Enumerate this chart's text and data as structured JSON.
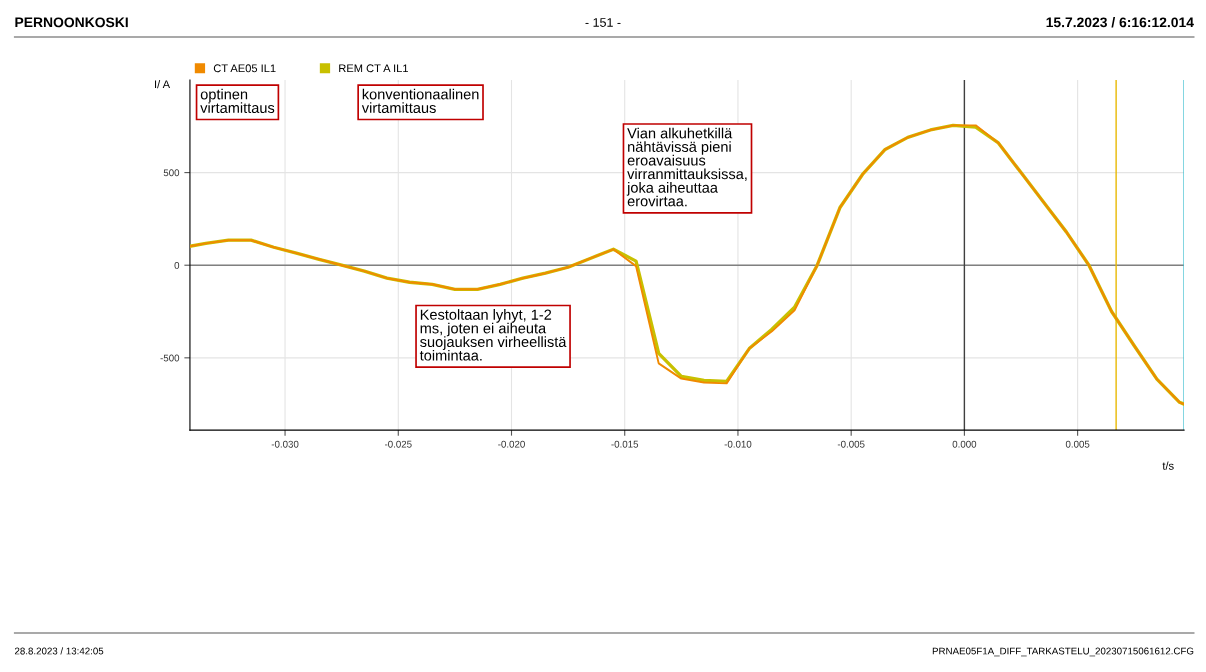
{
  "chart_data": {
    "type": "line",
    "title": "PERNOONKOSKI",
    "xlabel": "t/s",
    "ylabel": "I/ A",
    "annotations": [
      "- 151 -",
      "15.7.2023 / 6:16:12.014",
      "28.8.2023 / 13:42:05",
      "PRNAE05F1A_DIFF_TARKASTELU_20230715061612.CFG",
      "optinen\nvirtamittaus",
      "konventionaalinen\nvirtamittaus",
      "Vian alkuhetkillä\nnähtävissä pieni\neroavaisuus\nvirranmittauksissa,\njoka aiheuttaa\nerovirtaa.",
      "Kestoltaan lyhyt, 1-2\nms, joten ei aiheuta\nsuojauksen virheellistä\ntoimintaa."
    ],
    "x": [
      -0.0342,
      -0.0335,
      -0.0325,
      -0.0315,
      -0.0305,
      -0.0295,
      -0.0285,
      -0.0275,
      -0.0265,
      -0.0255,
      -0.0245,
      -0.0235,
      -0.0225,
      -0.0215,
      -0.0205,
      -0.0195,
      -0.0185,
      -0.0175,
      -0.0165,
      -0.0155,
      -0.0145,
      -0.0135,
      -0.0125,
      -0.0115,
      -0.0105,
      -0.0095,
      -0.0085,
      -0.0075,
      -0.0065,
      -0.0055,
      -0.0045,
      -0.0035,
      -0.0025,
      -0.0015,
      -0.0005,
      0.0005,
      0.0015,
      0.0025,
      0.0035,
      0.0045,
      0.0055,
      0.0065,
      0.0075,
      0.0085,
      0.0095,
      0.0097
    ],
    "series": [
      {
        "name": "CT AE05 IL1",
        "color": "#f08a00",
        "values": [
          102,
          118,
          135,
          135,
          97,
          65,
          32,
          0,
          -32,
          -70,
          -92,
          -103,
          -130,
          -130,
          -103,
          -70,
          -43,
          -11,
          38,
          86,
          -5,
          -530,
          -612,
          -633,
          -638,
          -450,
          -357,
          -243,
          0,
          310,
          490,
          625,
          690,
          730,
          755,
          755,
          660,
          500,
          340,
          180,
          0,
          -250,
          -435,
          -615,
          -740,
          -750
        ]
      },
      {
        "name": "REM CT A IL1",
        "color": "#c8c000",
        "values": [
          102,
          118,
          135,
          135,
          97,
          65,
          32,
          0,
          -32,
          -70,
          -92,
          -103,
          -130,
          -130,
          -103,
          -70,
          -43,
          -11,
          38,
          86,
          22,
          -476,
          -600,
          -622,
          -627,
          -450,
          -346,
          -227,
          0,
          310,
          490,
          625,
          690,
          730,
          755,
          745,
          660,
          500,
          340,
          180,
          0,
          -250,
          -435,
          -615,
          -740,
          -750
        ]
      }
    ],
    "xlim": [
      -0.0342,
      0.0097
    ],
    "ylim": [
      -890,
      1000
    ],
    "xticks": [
      {
        "value": -0.03,
        "label": "-0.030"
      },
      {
        "value": -0.025,
        "label": "-0.025"
      },
      {
        "value": -0.02,
        "label": "-0.020"
      },
      {
        "value": -0.015,
        "label": "-0.015"
      },
      {
        "value": -0.01,
        "label": "-0.010"
      },
      {
        "value": -0.005,
        "label": "-0.005"
      },
      {
        "value": 0,
        "label": "0.000"
      },
      {
        "value": 0.005,
        "label": "0.005"
      }
    ],
    "yticks": [
      -500,
      0,
      500
    ],
    "ref_lines": [
      {
        "axis": "y",
        "value": 0,
        "color": "#808080"
      },
      {
        "axis": "x",
        "value": 0,
        "color": "#404040"
      },
      {
        "axis": "x",
        "value": 0.0067,
        "color": "#e8b800"
      },
      {
        "axis": "x",
        "value": 0.0097,
        "color": "#40c0d0"
      }
    ],
    "grid": true,
    "legend": "top left",
    "marker": "none",
    "line_style": "solid"
  }
}
